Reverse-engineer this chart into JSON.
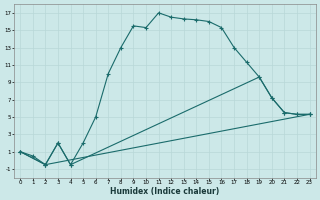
{
  "xlabel": "Humidex (Indice chaleur)",
  "bg_color": "#cce8e8",
  "line_color": "#1a6b6b",
  "grid_color": "#b8d8d8",
  "xlim": [
    -0.5,
    23.5
  ],
  "ylim": [
    -2,
    18
  ],
  "xticks": [
    0,
    1,
    2,
    3,
    4,
    5,
    6,
    7,
    8,
    9,
    10,
    11,
    12,
    13,
    14,
    15,
    16,
    17,
    18,
    19,
    20,
    21,
    22,
    23
  ],
  "yticks": [
    -1,
    1,
    3,
    5,
    7,
    9,
    11,
    13,
    15,
    17
  ],
  "series": [
    {
      "x": [
        0,
        1,
        2,
        3,
        4,
        5,
        6,
        7,
        8,
        9,
        10,
        11,
        12,
        13,
        14,
        15,
        16,
        17,
        18,
        19,
        20,
        21,
        22,
        23
      ],
      "y": [
        1,
        0.5,
        -0.5,
        2.0,
        -0.5,
        2.0,
        5.0,
        10.0,
        13.0,
        15.5,
        15.3,
        17.0,
        16.5,
        16.3,
        16.2,
        16.0,
        15.3,
        13.0,
        11.3,
        9.6,
        7.2,
        5.5,
        5.3,
        5.3
      ]
    },
    {
      "x": [
        0,
        2,
        3,
        4,
        19,
        20,
        21,
        22,
        23
      ],
      "y": [
        1,
        -0.5,
        2.0,
        -0.5,
        9.6,
        7.2,
        5.5,
        5.3,
        5.3
      ]
    },
    {
      "x": [
        0,
        2,
        23
      ],
      "y": [
        1,
        -0.5,
        5.3
      ]
    }
  ]
}
